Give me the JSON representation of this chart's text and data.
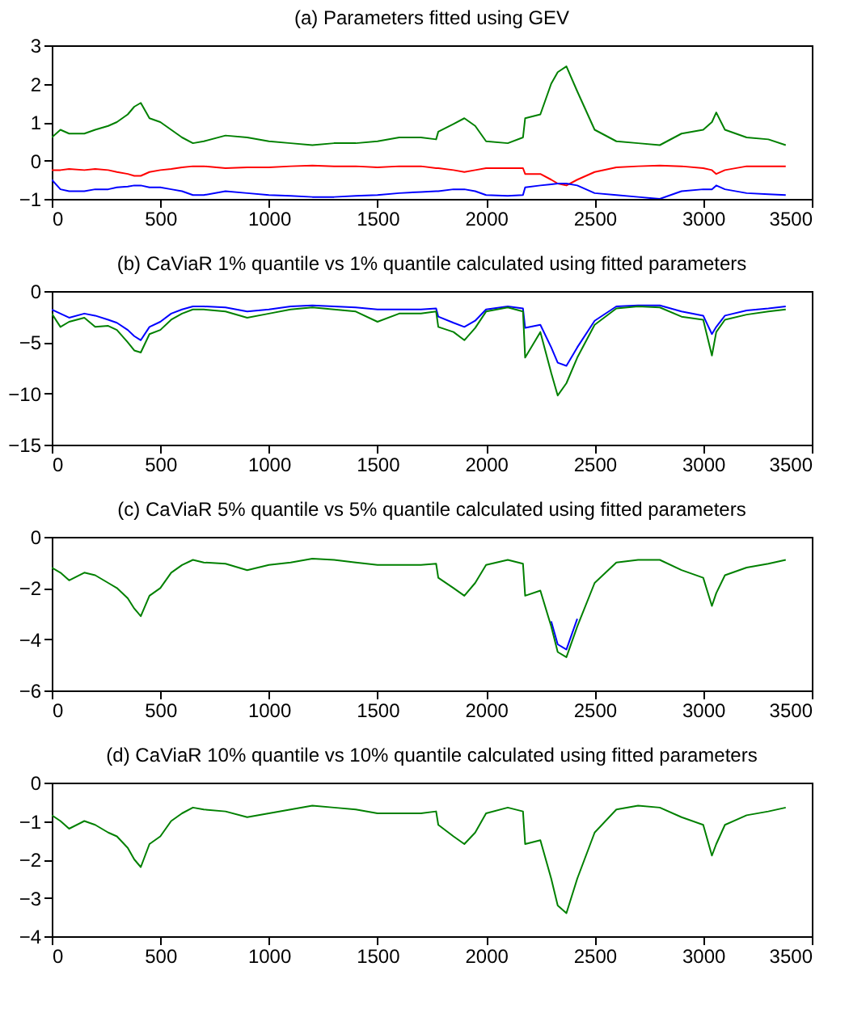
{
  "chart_data": [
    {
      "type": "line",
      "title": "(a) Parameters fitted using GEV",
      "x": [
        0,
        40,
        80,
        150,
        200,
        260,
        300,
        350,
        380,
        410,
        450,
        500,
        550,
        600,
        650,
        700,
        800,
        900,
        1000,
        1100,
        1200,
        1300,
        1400,
        1500,
        1600,
        1700,
        1770,
        1780,
        1850,
        1900,
        1950,
        2000,
        2100,
        2170,
        2180,
        2250,
        2300,
        2330,
        2370,
        2420,
        2500,
        2600,
        2700,
        2800,
        2900,
        3000,
        3040,
        3060,
        3100,
        3200,
        3300,
        3380
      ],
      "xlim": [
        0,
        3500
      ],
      "xticks": [
        0,
        500,
        1000,
        1500,
        2000,
        2500,
        3000,
        3500
      ],
      "ylim": [
        -1,
        3
      ],
      "yticks": [
        -1,
        0,
        1,
        2,
        3
      ],
      "grid": false,
      "legend": false,
      "series": [
        {
          "color": "#008000",
          "values": [
            0.6,
            0.8,
            0.7,
            0.7,
            0.8,
            0.9,
            1.0,
            1.2,
            1.4,
            1.5,
            1.1,
            1.0,
            0.8,
            0.6,
            0.45,
            0.5,
            0.65,
            0.6,
            0.5,
            0.45,
            0.4,
            0.45,
            0.45,
            0.5,
            0.6,
            0.6,
            0.55,
            0.75,
            0.95,
            1.1,
            0.9,
            0.5,
            0.45,
            0.6,
            1.1,
            1.2,
            2.0,
            2.3,
            2.45,
            1.8,
            0.8,
            0.5,
            0.45,
            0.4,
            0.7,
            0.8,
            1.0,
            1.25,
            0.8,
            0.6,
            0.55,
            0.4
          ]
        },
        {
          "color": "#ff0000",
          "values": [
            -0.25,
            -0.25,
            -0.22,
            -0.25,
            -0.22,
            -0.25,
            -0.3,
            -0.35,
            -0.4,
            -0.4,
            -0.3,
            -0.25,
            -0.22,
            -0.18,
            -0.15,
            -0.15,
            -0.2,
            -0.18,
            -0.18,
            -0.15,
            -0.13,
            -0.15,
            -0.15,
            -0.18,
            -0.15,
            -0.15,
            -0.2,
            -0.2,
            -0.25,
            -0.3,
            -0.25,
            -0.2,
            -0.2,
            -0.2,
            -0.35,
            -0.35,
            -0.5,
            -0.6,
            -0.65,
            -0.5,
            -0.3,
            -0.18,
            -0.15,
            -0.13,
            -0.15,
            -0.2,
            -0.25,
            -0.35,
            -0.25,
            -0.15,
            -0.15,
            -0.15
          ]
        },
        {
          "color": "#0000ff",
          "values": [
            -0.5,
            -0.75,
            -0.8,
            -0.8,
            -0.75,
            -0.75,
            -0.7,
            -0.68,
            -0.65,
            -0.65,
            -0.7,
            -0.7,
            -0.75,
            -0.8,
            -0.9,
            -0.9,
            -0.8,
            -0.85,
            -0.9,
            -0.92,
            -0.95,
            -0.95,
            -0.92,
            -0.9,
            -0.85,
            -0.82,
            -0.8,
            -0.8,
            -0.75,
            -0.75,
            -0.8,
            -0.9,
            -0.92,
            -0.9,
            -0.7,
            -0.65,
            -0.62,
            -0.6,
            -0.6,
            -0.65,
            -0.85,
            -0.9,
            -0.95,
            -1.0,
            -0.8,
            -0.75,
            -0.75,
            -0.65,
            -0.75,
            -0.85,
            -0.88,
            -0.9
          ]
        }
      ]
    },
    {
      "type": "line",
      "title": "(b) CaViaR 1% quantile vs 1% quantile calculated using fitted parameters",
      "x": [
        0,
        40,
        80,
        150,
        200,
        260,
        300,
        350,
        380,
        410,
        450,
        500,
        550,
        600,
        650,
        700,
        800,
        900,
        1000,
        1100,
        1200,
        1300,
        1400,
        1500,
        1600,
        1700,
        1770,
        1780,
        1850,
        1900,
        1950,
        2000,
        2100,
        2170,
        2180,
        2250,
        2300,
        2330,
        2370,
        2420,
        2500,
        2600,
        2700,
        2800,
        2900,
        3000,
        3040,
        3060,
        3100,
        3200,
        3300,
        3380
      ],
      "xlim": [
        0,
        3500
      ],
      "xticks": [
        0,
        500,
        1000,
        1500,
        2000,
        2500,
        3000,
        3500
      ],
      "ylim": [
        -15,
        0
      ],
      "yticks": [
        -15,
        -10,
        -5,
        0
      ],
      "grid": false,
      "legend": false,
      "series": [
        {
          "color": "#0000ff",
          "values": [
            -1.8,
            -2.2,
            -2.6,
            -2.2,
            -2.4,
            -2.8,
            -3.1,
            -3.8,
            -4.4,
            -4.8,
            -3.5,
            -3.0,
            -2.2,
            -1.8,
            -1.5,
            -1.5,
            -1.6,
            -2.0,
            -1.8,
            -1.5,
            -1.4,
            -1.5,
            -1.6,
            -1.8,
            -1.8,
            -1.8,
            -1.7,
            -2.5,
            -3.1,
            -3.5,
            -2.9,
            -1.8,
            -1.5,
            -1.7,
            -3.6,
            -3.3,
            -5.5,
            -7.0,
            -7.3,
            -5.5,
            -2.9,
            -1.5,
            -1.4,
            -1.4,
            -2.0,
            -2.4,
            -4.2,
            -3.5,
            -2.4,
            -1.9,
            -1.7,
            -1.5
          ]
        },
        {
          "color": "#008000",
          "values": [
            -2.2,
            -3.5,
            -3.0,
            -2.6,
            -3.5,
            -3.4,
            -3.8,
            -5.0,
            -5.8,
            -6.0,
            -4.2,
            -3.8,
            -2.8,
            -2.2,
            -1.8,
            -1.8,
            -2.0,
            -2.6,
            -2.2,
            -1.8,
            -1.6,
            -1.8,
            -2.0,
            -3.0,
            -2.2,
            -2.2,
            -2.0,
            -3.5,
            -4.0,
            -4.8,
            -3.6,
            -2.0,
            -1.6,
            -2.0,
            -6.5,
            -4.0,
            -8.0,
            -10.2,
            -9.0,
            -6.5,
            -3.3,
            -1.7,
            -1.5,
            -1.6,
            -2.5,
            -2.8,
            -6.3,
            -4.0,
            -2.8,
            -2.3,
            -2.0,
            -1.8
          ]
        }
      ]
    },
    {
      "type": "line",
      "title": "(c) CaViaR 5% quantile vs 5% quantile calculated using fitted parameters",
      "x": [
        0,
        40,
        80,
        150,
        200,
        260,
        300,
        350,
        380,
        410,
        450,
        500,
        550,
        600,
        650,
        700,
        800,
        900,
        1000,
        1100,
        1200,
        1300,
        1400,
        1500,
        1600,
        1700,
        1770,
        1780,
        1850,
        1900,
        1950,
        2000,
        2100,
        2170,
        2180,
        2250,
        2300,
        2330,
        2370,
        2420,
        2500,
        2600,
        2700,
        2800,
        2900,
        3000,
        3040,
        3060,
        3100,
        3200,
        3300,
        3380
      ],
      "xlim": [
        0,
        3500
      ],
      "xticks": [
        0,
        500,
        1000,
        1500,
        2000,
        2500,
        3000,
        3500
      ],
      "ylim": [
        -6,
        0
      ],
      "yticks": [
        -6,
        -4,
        -2,
        0
      ],
      "grid": false,
      "legend": false,
      "series": [
        {
          "color": "#0000ff",
          "values": [
            null,
            null,
            null,
            null,
            null,
            null,
            null,
            null,
            null,
            null,
            null,
            null,
            null,
            null,
            null,
            null,
            null,
            null,
            null,
            null,
            null,
            null,
            null,
            null,
            null,
            null,
            null,
            null,
            null,
            null,
            null,
            null,
            null,
            null,
            null,
            null,
            -3.3,
            -4.2,
            -4.4,
            -3.2,
            null,
            null,
            null,
            null,
            null,
            null,
            null,
            null,
            null,
            null,
            null,
            null
          ]
        },
        {
          "color": "#008000",
          "values": [
            -1.2,
            -1.4,
            -1.7,
            -1.4,
            -1.5,
            -1.8,
            -2.0,
            -2.4,
            -2.8,
            -3.1,
            -2.3,
            -2.0,
            -1.4,
            -1.1,
            -0.9,
            -1.0,
            -1.05,
            -1.3,
            -1.1,
            -1.0,
            -0.85,
            -0.9,
            -1.0,
            -1.1,
            -1.1,
            -1.1,
            -1.05,
            -1.6,
            -2.0,
            -2.3,
            -1.8,
            -1.1,
            -0.9,
            -1.05,
            -2.3,
            -2.1,
            -3.5,
            -4.5,
            -4.7,
            -3.5,
            -1.8,
            -1.0,
            -0.9,
            -0.9,
            -1.3,
            -1.6,
            -2.7,
            -2.2,
            -1.5,
            -1.2,
            -1.05,
            -0.9
          ]
        }
      ]
    },
    {
      "type": "line",
      "title": "(d) CaViaR 10% quantile vs 10% quantile calculated using fitted parameters",
      "x": [
        0,
        40,
        80,
        150,
        200,
        260,
        300,
        350,
        380,
        410,
        450,
        500,
        550,
        600,
        650,
        700,
        800,
        900,
        1000,
        1100,
        1200,
        1300,
        1400,
        1500,
        1600,
        1700,
        1770,
        1780,
        1850,
        1900,
        1950,
        2000,
        2100,
        2170,
        2180,
        2250,
        2300,
        2330,
        2370,
        2420,
        2500,
        2600,
        2700,
        2800,
        2900,
        3000,
        3040,
        3060,
        3100,
        3200,
        3300,
        3380
      ],
      "xlim": [
        0,
        3500
      ],
      "xticks": [
        0,
        500,
        1000,
        1500,
        2000,
        2500,
        3000,
        3500
      ],
      "ylim": [
        -4,
        0
      ],
      "yticks": [
        -4,
        -3,
        -2,
        -1,
        0
      ],
      "grid": false,
      "legend": false,
      "series": [
        {
          "color": "#008000",
          "values": [
            -0.85,
            -1.0,
            -1.2,
            -1.0,
            -1.1,
            -1.3,
            -1.4,
            -1.7,
            -2.0,
            -2.2,
            -1.6,
            -1.4,
            -1.0,
            -0.8,
            -0.65,
            -0.7,
            -0.75,
            -0.9,
            -0.8,
            -0.7,
            -0.6,
            -0.65,
            -0.7,
            -0.8,
            -0.8,
            -0.8,
            -0.75,
            -1.1,
            -1.4,
            -1.6,
            -1.3,
            -0.8,
            -0.65,
            -0.75,
            -1.6,
            -1.5,
            -2.5,
            -3.2,
            -3.4,
            -2.5,
            -1.3,
            -0.7,
            -0.6,
            -0.65,
            -0.9,
            -1.1,
            -1.9,
            -1.6,
            -1.1,
            -0.85,
            -0.75,
            -0.65
          ]
        }
      ]
    }
  ]
}
